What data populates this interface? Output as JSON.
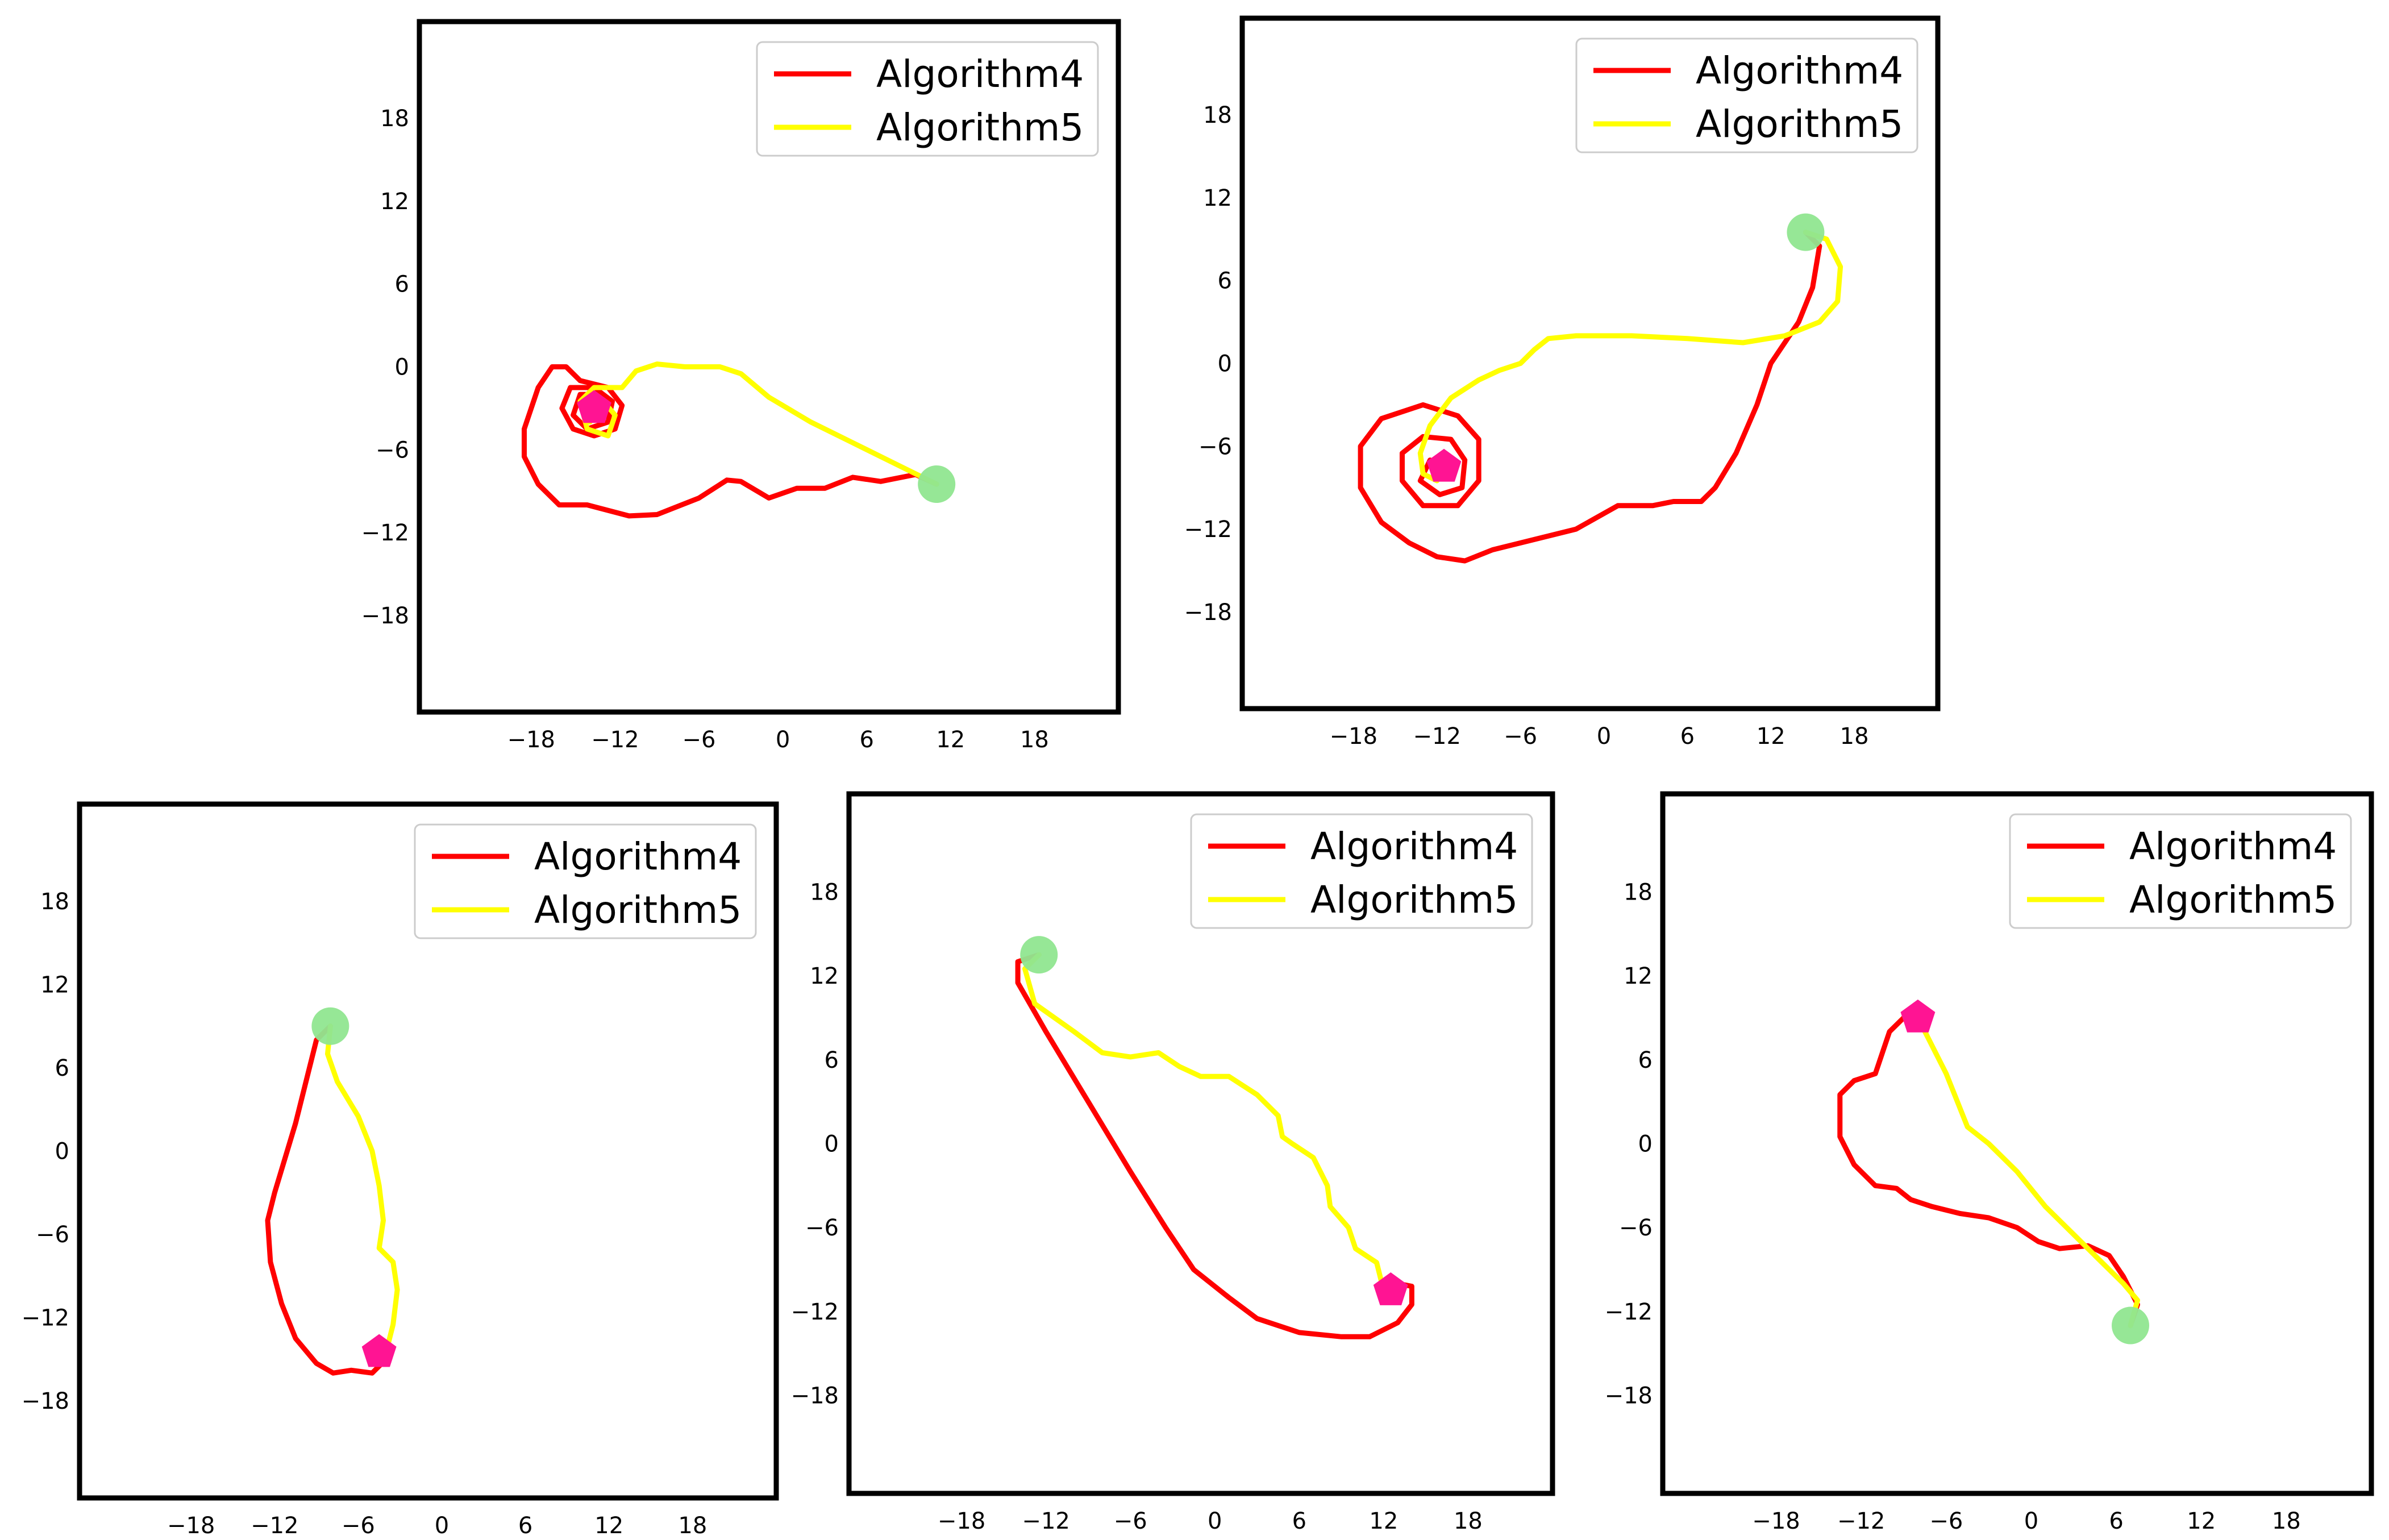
{
  "colors": {
    "algorithm4": "#ff0000",
    "algorithm5": "#ffff00",
    "start_marker": "#90e690",
    "goal_marker": "#ff1493",
    "frame": "#000000",
    "legend_border": "#cccccc"
  },
  "chart_data": [
    {
      "type": "line",
      "panel": "top-left",
      "legend_position": "top-right",
      "xlim": [
        -26,
        24
      ],
      "ylim": [
        -25,
        25
      ],
      "xticks": [
        "-18",
        "-12",
        "-6",
        "0",
        "6",
        "12",
        "18"
      ],
      "yticks": [
        "18",
        "12",
        "6",
        "0",
        "-6",
        "-12",
        "-18"
      ],
      "legend": [
        "Algorithm4",
        "Algorithm5"
      ],
      "start": [
        11,
        -8.5
      ],
      "goal": [
        -13.5,
        -3
      ],
      "series": [
        {
          "name": "Algorithm4",
          "points": [
            [
              11,
              -8.5
            ],
            [
              9.5,
              -7.8
            ],
            [
              7,
              -8.3
            ],
            [
              5,
              -8
            ],
            [
              3,
              -8.8
            ],
            [
              1,
              -8.8
            ],
            [
              -1,
              -9.5
            ],
            [
              -3,
              -8.3
            ],
            [
              -4,
              -8.2
            ],
            [
              -6,
              -9.5
            ],
            [
              -9,
              -10.7
            ],
            [
              -11,
              -10.8
            ],
            [
              -14,
              -10
            ],
            [
              -16,
              -10
            ],
            [
              -17.5,
              -8.5
            ],
            [
              -18.5,
              -6.5
            ],
            [
              -18.5,
              -4.5
            ],
            [
              -17.5,
              -1.5
            ],
            [
              -16.5,
              0
            ],
            [
              -15.5,
              0
            ],
            [
              -14.5,
              -1
            ],
            [
              -12.5,
              -1.5
            ],
            [
              -11.5,
              -2.8
            ],
            [
              -12,
              -4.5
            ],
            [
              -13.5,
              -5
            ],
            [
              -15,
              -4.5
            ],
            [
              -15.8,
              -3
            ],
            [
              -15.2,
              -1.5
            ],
            [
              -13.5,
              -1.5
            ],
            [
              -12.2,
              -2.5
            ],
            [
              -12.5,
              -4
            ],
            [
              -14,
              -4.5
            ],
            [
              -15,
              -3.5
            ],
            [
              -14.5,
              -2
            ],
            [
              -13.2,
              -2
            ],
            [
              -13,
              -3.2
            ],
            [
              -13.5,
              -3
            ]
          ]
        },
        {
          "name": "Algorithm5",
          "points": [
            [
              11,
              -8.5
            ],
            [
              8,
              -7
            ],
            [
              5,
              -5.5
            ],
            [
              2,
              -4
            ],
            [
              -1,
              -2.2
            ],
            [
              -3,
              -0.5
            ],
            [
              -4.5,
              0
            ],
            [
              -7,
              0
            ],
            [
              -9,
              0.2
            ],
            [
              -10.5,
              -0.3
            ],
            [
              -11.5,
              -1.5
            ],
            [
              -13.5,
              -1.5
            ],
            [
              -14.5,
              -2.5
            ],
            [
              -14,
              -4.5
            ],
            [
              -12.5,
              -5
            ],
            [
              -12,
              -3.5
            ],
            [
              -13,
              -2.3
            ],
            [
              -14.2,
              -3
            ],
            [
              -13.8,
              -4
            ]
          ]
        }
      ]
    },
    {
      "type": "line",
      "panel": "top-right",
      "legend_position": "top-right",
      "xlim": [
        -26,
        24
      ],
      "ylim": [
        -25,
        25
      ],
      "xticks": [
        "-18",
        "-12",
        "-6",
        "0",
        "6",
        "12",
        "18"
      ],
      "yticks": [
        "18",
        "12",
        "6",
        "0",
        "-6",
        "-12",
        "-18"
      ],
      "legend": [
        "Algorithm4",
        "Algorithm5"
      ],
      "start": [
        14.5,
        9.5
      ],
      "goal": [
        -11.5,
        -7.5
      ],
      "series": [
        {
          "name": "Algorithm4",
          "points": [
            [
              14.5,
              9.5
            ],
            [
              15.5,
              8.5
            ],
            [
              15,
              5.5
            ],
            [
              14,
              3
            ],
            [
              12,
              0
            ],
            [
              11,
              -3
            ],
            [
              9.5,
              -6.5
            ],
            [
              8,
              -9
            ],
            [
              7,
              -10
            ],
            [
              5,
              -10
            ],
            [
              3.5,
              -10.3
            ],
            [
              1,
              -10.3
            ],
            [
              -2,
              -12
            ],
            [
              -4,
              -12.5
            ],
            [
              -6,
              -13
            ],
            [
              -8,
              -13.5
            ],
            [
              -10,
              -14.3
            ],
            [
              -12,
              -14
            ],
            [
              -14,
              -13
            ],
            [
              -16,
              -11.5
            ],
            [
              -17.5,
              -9
            ],
            [
              -17.5,
              -6
            ],
            [
              -16,
              -4
            ],
            [
              -13,
              -3
            ],
            [
              -10.5,
              -3.8
            ],
            [
              -9,
              -5.5
            ],
            [
              -9,
              -8.5
            ],
            [
              -10.5,
              -10.3
            ],
            [
              -13,
              -10.3
            ],
            [
              -14.5,
              -8.5
            ],
            [
              -14.5,
              -6.5
            ],
            [
              -13,
              -5.3
            ],
            [
              -11,
              -5.5
            ],
            [
              -10,
              -7
            ],
            [
              -10.2,
              -9
            ],
            [
              -11.8,
              -9.5
            ],
            [
              -13.2,
              -8.5
            ],
            [
              -12.5,
              -7
            ],
            [
              -11.5,
              -7.5
            ]
          ]
        },
        {
          "name": "Algorithm5",
          "points": [
            [
              14.5,
              9.5
            ],
            [
              16,
              9
            ],
            [
              17,
              7
            ],
            [
              16.8,
              4.5
            ],
            [
              15.5,
              3
            ],
            [
              13,
              2
            ],
            [
              10,
              1.5
            ],
            [
              6,
              1.8
            ],
            [
              2,
              2
            ],
            [
              -2,
              2
            ],
            [
              -4,
              1.8
            ],
            [
              -5,
              1
            ],
            [
              -6,
              0
            ],
            [
              -7.5,
              -0.5
            ],
            [
              -9,
              -1.2
            ],
            [
              -11,
              -2.5
            ],
            [
              -12.5,
              -4.5
            ],
            [
              -13.2,
              -6.5
            ],
            [
              -13,
              -8
            ],
            [
              -12,
              -8.5
            ],
            [
              -11.5,
              -7.5
            ]
          ]
        }
      ]
    },
    {
      "type": "line",
      "panel": "bottom-left",
      "legend_position": "top-right",
      "xlim": [
        -26,
        24
      ],
      "ylim": [
        -25,
        25
      ],
      "xticks": [
        "-18",
        "-12",
        "-6",
        "0",
        "6",
        "12",
        "18"
      ],
      "yticks": [
        "18",
        "12",
        "6",
        "0",
        "-6",
        "-12",
        "-18"
      ],
      "legend": [
        "Algorithm4",
        "Algorithm5"
      ],
      "start": [
        -8,
        9
      ],
      "goal": [
        -4.5,
        -14.5
      ],
      "series": [
        {
          "name": "Algorithm4",
          "points": [
            [
              -8,
              9
            ],
            [
              -9,
              8
            ],
            [
              -10.5,
              2
            ],
            [
              -12,
              -3
            ],
            [
              -12.5,
              -5
            ],
            [
              -12.3,
              -8
            ],
            [
              -11.5,
              -11
            ],
            [
              -10.5,
              -13.5
            ],
            [
              -9,
              -15.3
            ],
            [
              -7.8,
              -16
            ],
            [
              -6.5,
              -15.8
            ],
            [
              -5,
              -16
            ],
            [
              -4,
              -15
            ],
            [
              -4.5,
              -14.5
            ]
          ]
        },
        {
          "name": "Algorithm5",
          "points": [
            [
              -8,
              9
            ],
            [
              -8.2,
              7
            ],
            [
              -7.5,
              5
            ],
            [
              -6,
              2.5
            ],
            [
              -5,
              0
            ],
            [
              -4.5,
              -2.5
            ],
            [
              -4.2,
              -5
            ],
            [
              -4.5,
              -7
            ],
            [
              -3.5,
              -8
            ],
            [
              -3.2,
              -10
            ],
            [
              -3.5,
              -12.5
            ],
            [
              -4,
              -14.5
            ]
          ]
        }
      ]
    },
    {
      "type": "line",
      "panel": "bottom-middle",
      "legend_position": "top-right",
      "xlim": [
        -26,
        24
      ],
      "ylim": [
        -25,
        25
      ],
      "xticks": [
        "-18",
        "-12",
        "-6",
        "0",
        "6",
        "12",
        "18"
      ],
      "yticks": [
        "18",
        "12",
        "6",
        "0",
        "-6",
        "-12",
        "-18"
      ],
      "legend": [
        "Algorithm4",
        "Algorithm5"
      ],
      "start": [
        -12.5,
        13.5
      ],
      "goal": [
        12.5,
        -10.5
      ],
      "series": [
        {
          "name": "Algorithm4",
          "points": [
            [
              -12.5,
              13.5
            ],
            [
              -14,
              13
            ],
            [
              -14,
              11.5
            ],
            [
              -12,
              8
            ],
            [
              -9,
              3
            ],
            [
              -6,
              -2
            ],
            [
              -3.5,
              -6
            ],
            [
              -1.5,
              -9
            ],
            [
              1,
              -11
            ],
            [
              3,
              -12.5
            ],
            [
              6,
              -13.5
            ],
            [
              9,
              -13.8
            ],
            [
              11,
              -13.8
            ],
            [
              13,
              -12.8
            ],
            [
              14,
              -11.5
            ],
            [
              14,
              -10.2
            ],
            [
              13,
              -10
            ],
            [
              12.5,
              -10.5
            ]
          ]
        },
        {
          "name": "Algorithm5",
          "points": [
            [
              -12.5,
              13.5
            ],
            [
              -13.5,
              12.5
            ],
            [
              -12.8,
              10
            ],
            [
              -10,
              8
            ],
            [
              -8,
              6.5
            ],
            [
              -6,
              6.2
            ],
            [
              -4,
              6.5
            ],
            [
              -2.5,
              5.5
            ],
            [
              -1,
              4.8
            ],
            [
              1,
              4.8
            ],
            [
              3,
              3.5
            ],
            [
              4.5,
              2
            ],
            [
              4.8,
              0.5
            ],
            [
              5.5,
              0
            ],
            [
              7,
              -1
            ],
            [
              8,
              -3
            ],
            [
              8.2,
              -4.5
            ],
            [
              9.5,
              -6
            ],
            [
              10,
              -7.5
            ],
            [
              11.5,
              -8.5
            ],
            [
              12,
              -10.5
            ]
          ]
        }
      ]
    },
    {
      "type": "line",
      "panel": "bottom-right",
      "legend_position": "top-right",
      "xlim": [
        -26,
        24
      ],
      "ylim": [
        -25,
        25
      ],
      "xticks": [
        "-18",
        "-12",
        "-6",
        "0",
        "6",
        "12",
        "18"
      ],
      "yticks": [
        "18",
        "12",
        "6",
        "0",
        "-6",
        "-12",
        "-18"
      ],
      "legend": [
        "Algorithm4",
        "Algorithm5"
      ],
      "start": [
        7,
        -13
      ],
      "goal": [
        -8,
        9
      ],
      "series": [
        {
          "name": "Algorithm4",
          "points": [
            [
              -8,
              9
            ],
            [
              -9,
              9
            ],
            [
              -10,
              8
            ],
            [
              -11,
              5
            ],
            [
              -12.5,
              4.5
            ],
            [
              -13.5,
              3.5
            ],
            [
              -13.5,
              1
            ],
            [
              -13.5,
              0.5
            ],
            [
              -12.5,
              -1.5
            ],
            [
              -11,
              -3
            ],
            [
              -9.5,
              -3.2
            ],
            [
              -8.5,
              -4
            ],
            [
              -7,
              -4.5
            ],
            [
              -5,
              -5
            ],
            [
              -3,
              -5.3
            ],
            [
              -1,
              -6
            ],
            [
              0.5,
              -7
            ],
            [
              2,
              -7.5
            ],
            [
              4,
              -7.3
            ],
            [
              5.5,
              -8
            ],
            [
              6.5,
              -9.5
            ],
            [
              7.5,
              -11.5
            ],
            [
              7,
              -13
            ]
          ]
        },
        {
          "name": "Algorithm5",
          "points": [
            [
              -8,
              9
            ],
            [
              -7.5,
              8
            ],
            [
              -6,
              5
            ],
            [
              -4.5,
              1.2
            ],
            [
              -3,
              0
            ],
            [
              -1,
              -2
            ],
            [
              1,
              -4.5
            ],
            [
              3,
              -6.5
            ],
            [
              5,
              -8.5
            ],
            [
              6.5,
              -10
            ],
            [
              7.5,
              -11.2
            ],
            [
              7,
              -13
            ]
          ]
        }
      ]
    }
  ]
}
